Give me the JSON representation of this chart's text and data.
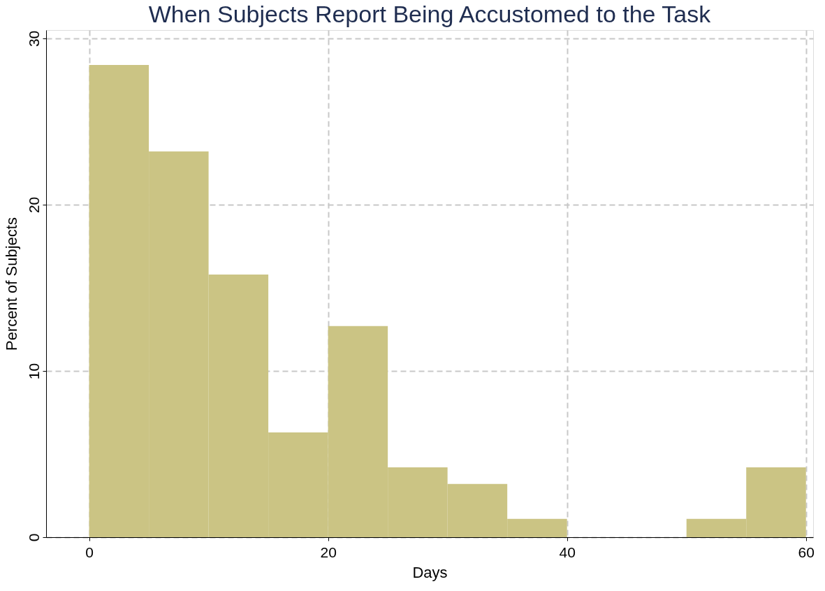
{
  "chart_data": {
    "type": "histogram",
    "title": "When Subjects Report Being Accustomed to the Task",
    "xlabel": "Days",
    "ylabel": "Percent of Subjects",
    "bins": [
      0,
      5,
      10,
      15,
      20,
      25,
      30,
      35,
      40,
      45,
      50,
      55,
      60
    ],
    "values": [
      28.4,
      23.2,
      15.8,
      6.3,
      12.7,
      4.2,
      3.2,
      1.1,
      0,
      0,
      1.1,
      4.2
    ],
    "color": "#cbc484",
    "xlim": [
      -3.6,
      60.6
    ],
    "ylim": [
      0,
      30.5
    ],
    "xticks": [
      0,
      20,
      40,
      60
    ],
    "yticks": [
      0,
      10,
      20,
      30
    ],
    "grid": true
  }
}
